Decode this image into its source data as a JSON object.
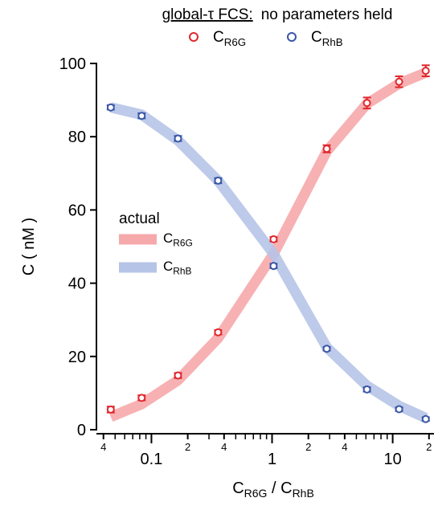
{
  "chart_data": {
    "type": "scatter",
    "title": {
      "underlined": "global-τ FCS:",
      "rest": "no parameters held"
    },
    "xlabel": [
      {
        "text": "C"
      },
      {
        "text": "R6G",
        "sub": true
      },
      {
        "text": " / C"
      },
      {
        "text": "RhB",
        "sub": true
      }
    ],
    "ylabel": "C ( nM )",
    "xscale": "log",
    "x": [
      0.046,
      0.083,
      0.166,
      0.357,
      1.03,
      2.84,
      6.12,
      11.3,
      18.8
    ],
    "series": [
      {
        "name": "C",
        "name_sub": "R6G",
        "color": "#e0282e",
        "values": [
          5.5,
          8.7,
          14.8,
          26.6,
          52,
          76.7,
          89.2,
          95,
          98
        ],
        "errors": [
          0.8,
          0.7,
          0.7,
          0.6,
          0.6,
          1,
          1.5,
          1.5,
          1.5
        ]
      },
      {
        "name": "C",
        "name_sub": "RhB",
        "color": "#3a56a6",
        "values": [
          88,
          85.7,
          79.5,
          68,
          44.7,
          22.1,
          11,
          5.6,
          2.9
        ],
        "errors": [
          0.6,
          0.7,
          0.7,
          0.7,
          0.6,
          0.5,
          0.6,
          0.5,
          0.5
        ]
      }
    ],
    "actual": {
      "title": "actual",
      "series": [
        {
          "name": "C",
          "name_sub": "R6G",
          "color": "#f6a9ab",
          "values": [
            3.5,
            7,
            13.5,
            25,
            48,
            76,
            89,
            94.5,
            97.5
          ]
        },
        {
          "name": "C",
          "name_sub": "RhB",
          "color": "#b6c4e7",
          "values": [
            88,
            86,
            79,
            68,
            48,
            22.5,
            12,
            6.5,
            3.2
          ]
        }
      ]
    },
    "xlim": [
      0.035,
      22
    ],
    "ylim": [
      0,
      100
    ],
    "yticks": [
      0,
      20,
      40,
      60,
      80,
      100
    ],
    "xticks": [
      {
        "value": 0.04,
        "label": "4"
      },
      0.1,
      {
        "value": 0.2,
        "label": "2"
      },
      {
        "value": 0.4,
        "label": "4"
      },
      1,
      {
        "value": 2,
        "label": "2"
      },
      {
        "value": 4,
        "label": "4"
      },
      10,
      {
        "value": 20,
        "label": "2"
      }
    ],
    "xminor_ticks": [
      0.05,
      0.06,
      0.07,
      0.08,
      0.09,
      0.3,
      0.5,
      0.6,
      0.7,
      0.8,
      0.9,
      3,
      5,
      6,
      7,
      8,
      9
    ]
  }
}
